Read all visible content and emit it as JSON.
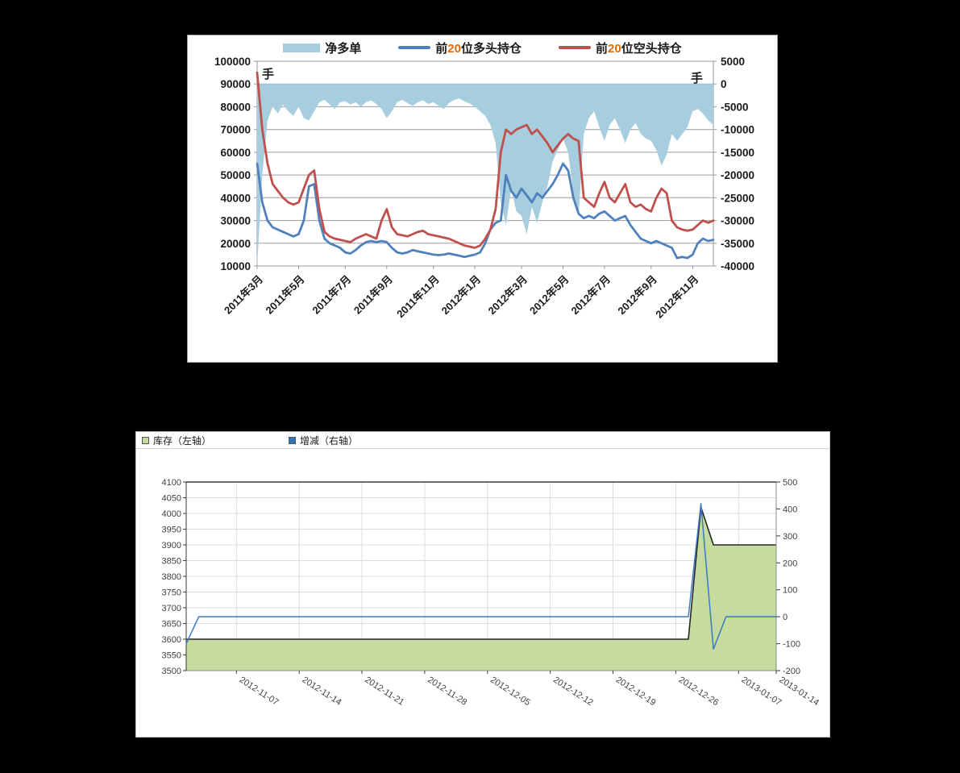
{
  "page": {
    "background": "#000000"
  },
  "chart_data": [
    {
      "id": "futures-positions",
      "type": "area+line",
      "unit_left": "手",
      "unit_right": "手",
      "digit_color": "#E26B0A",
      "grid_color": "#9b9b9b",
      "axis_text_color": "#1a1a1a",
      "left_axis": {
        "min": 10000,
        "max": 100000,
        "step": 10000
      },
      "right_axis": {
        "min": -40000,
        "max": 5000,
        "step": 5000
      },
      "x_tick_labels": [
        "2011年3月",
        "2011年5月",
        "2011年7月",
        "2011年9月",
        "2011年11月",
        "2012年1月",
        "2012年3月",
        "2012年5月",
        "2012年7月",
        "2012年9月",
        "2012年11月"
      ],
      "x_tick_indices": [
        0,
        8,
        17,
        25,
        34,
        42,
        51,
        59,
        67,
        76,
        84
      ],
      "series": [
        {
          "name": "净多单",
          "type": "area",
          "axis": "right",
          "color": "#A7CEDF",
          "values": [
            -40000,
            -20000,
            -8000,
            -5000,
            -6500,
            -4500,
            -6000,
            -7000,
            -5000,
            -7500,
            -8000,
            -6000,
            -4000,
            -3500,
            -4500,
            -5500,
            -4000,
            -3800,
            -4500,
            -4000,
            -5000,
            -4000,
            -3600,
            -4400,
            -5500,
            -7500,
            -6000,
            -4000,
            -3500,
            -4200,
            -4800,
            -4000,
            -3600,
            -4400,
            -4000,
            -4800,
            -5500,
            -4200,
            -3500,
            -3200,
            -3800,
            -4300,
            -5000,
            -6000,
            -7000,
            -9000,
            -13000,
            -26000,
            -31000,
            -23000,
            -28000,
            -29000,
            -33000,
            -27000,
            -30500,
            -26000,
            -22500,
            -17000,
            -14500,
            -12000,
            -15000,
            -24000,
            -29000,
            -11000,
            -7500,
            -6000,
            -9500,
            -12500,
            -9000,
            -7500,
            -10000,
            -13000,
            -10000,
            -8500,
            -11000,
            -12000,
            -12500,
            -14500,
            -18000,
            -15500,
            -11000,
            -12500,
            -11000,
            -9500,
            -6000,
            -5500,
            -6500,
            -8000,
            -9000
          ]
        },
        {
          "name": "前20位多头持仓",
          "type": "line",
          "axis": "left",
          "color": "#4F81BD",
          "values": [
            55000,
            38000,
            30000,
            27000,
            26000,
            25000,
            24000,
            23000,
            24000,
            30000,
            45000,
            46000,
            30000,
            22000,
            20000,
            19000,
            18000,
            16000,
            15500,
            17000,
            19000,
            20500,
            21000,
            20500,
            21000,
            20500,
            18000,
            16000,
            15500,
            16000,
            17000,
            16500,
            16000,
            15500,
            15000,
            14800,
            15000,
            15500,
            15000,
            14500,
            14000,
            14500,
            15000,
            16000,
            20000,
            26000,
            29000,
            30000,
            50000,
            43000,
            40000,
            44000,
            41000,
            38000,
            42000,
            40000,
            43000,
            46000,
            50000,
            55000,
            52000,
            40000,
            33000,
            31000,
            32000,
            31000,
            33000,
            34000,
            32000,
            30000,
            31000,
            32000,
            28000,
            25000,
            22000,
            21000,
            20000,
            21000,
            20000,
            19000,
            18000,
            13500,
            14000,
            13500,
            15000,
            20000,
            22000,
            21000,
            21500
          ]
        },
        {
          "name": "前20位空头持仓",
          "type": "line",
          "axis": "left",
          "color": "#C0504D",
          "values": [
            95000,
            70000,
            55000,
            46000,
            43000,
            40000,
            38000,
            37000,
            38000,
            44000,
            50000,
            52000,
            35000,
            25000,
            23000,
            22000,
            21500,
            21000,
            20500,
            22000,
            23000,
            24000,
            23000,
            22000,
            30000,
            35000,
            27000,
            24000,
            23500,
            23000,
            24000,
            25000,
            25500,
            24000,
            23500,
            23000,
            22500,
            22000,
            21000,
            20000,
            19000,
            18500,
            18000,
            19000,
            22000,
            26000,
            35000,
            60000,
            70000,
            68000,
            70000,
            71000,
            72000,
            68000,
            70000,
            67000,
            64000,
            60000,
            63000,
            66000,
            68000,
            66000,
            65000,
            40000,
            38000,
            36000,
            42000,
            47000,
            40000,
            38000,
            42000,
            46000,
            38000,
            36000,
            37000,
            35000,
            34000,
            40000,
            44000,
            42000,
            30000,
            27000,
            26000,
            25500,
            26000,
            28000,
            30000,
            29000,
            30000
          ]
        }
      ]
    },
    {
      "id": "inventory-change",
      "type": "area+line",
      "grid_color": "#dcdcdc",
      "axis_text_color": "#404040",
      "left_axis": {
        "min": 3500,
        "max": 4100,
        "step": 50
      },
      "right_axis": {
        "min": -200,
        "max": 500,
        "step": 100
      },
      "x_tick_labels": [
        "2012-11-07",
        "2012-11-14",
        "2012-11-21",
        "2012-11-28",
        "2012-12-05",
        "2012-12-12",
        "2012-12-19",
        "2012-12-26",
        "2013-01-07",
        "2013-01-14"
      ],
      "x_tick_indices": [
        4,
        9,
        14,
        19,
        24,
        29,
        34,
        39,
        44,
        47
      ],
      "series": [
        {
          "name": "库存（左轴）",
          "type": "area",
          "axis": "left",
          "color": "#C5DC9E",
          "outline": "#262626",
          "values": [
            3600,
            3600,
            3600,
            3600,
            3600,
            3600,
            3600,
            3600,
            3600,
            3600,
            3600,
            3600,
            3600,
            3600,
            3600,
            3600,
            3600,
            3600,
            3600,
            3600,
            3600,
            3600,
            3600,
            3600,
            3600,
            3600,
            3600,
            3600,
            3600,
            3600,
            3600,
            3600,
            3600,
            3600,
            3600,
            3600,
            3600,
            3600,
            3600,
            3600,
            3600,
            4020,
            3900,
            3900,
            3900,
            3900,
            3900,
            3900
          ]
        },
        {
          "name": "增减（右轴）",
          "type": "line",
          "axis": "right",
          "color": "#3E78C2",
          "values": [
            -100,
            0,
            0,
            0,
            0,
            0,
            0,
            0,
            0,
            0,
            0,
            0,
            0,
            0,
            0,
            0,
            0,
            0,
            0,
            0,
            0,
            0,
            0,
            0,
            0,
            0,
            0,
            0,
            0,
            0,
            0,
            0,
            0,
            0,
            0,
            0,
            0,
            0,
            0,
            0,
            0,
            420,
            -120,
            0,
            0,
            0,
            0,
            0
          ]
        }
      ]
    }
  ]
}
